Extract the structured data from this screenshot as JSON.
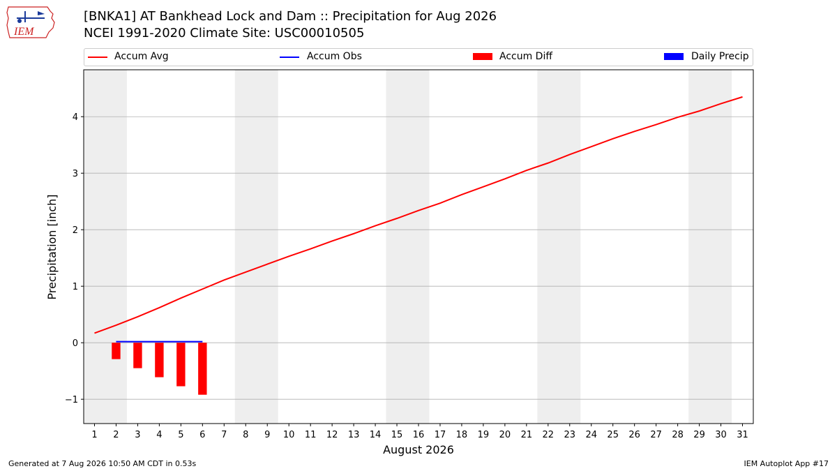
{
  "header": {
    "title_line1": "[BNKA1] AT Bankhead Lock and Dam :: Precipitation for Aug 2026",
    "title_line2": "NCEI 1991-2020 Climate Site: USC00010505",
    "logo_text": "IEM"
  },
  "footer": {
    "generated": "Generated at 7 Aug 2026 10:50 AM CDT in 0.53s",
    "app": "IEM Autoplot App #17"
  },
  "colors": {
    "accum_avg": "#ff0000",
    "accum_obs": "#0000ff",
    "accum_diff": "#ff0000",
    "daily_precip": "#0000ff",
    "weekend_shade": "#eeeeee",
    "grid": "#b0b0b0"
  },
  "chart_data": {
    "type": "line",
    "xlabel": "August 2026",
    "ylabel": "Precipitation [inch]",
    "xlim": [
      0.5,
      31.5
    ],
    "ylim": [
      -1.43,
      4.83
    ],
    "x_ticks": [
      1,
      2,
      3,
      4,
      5,
      6,
      7,
      8,
      9,
      10,
      11,
      12,
      13,
      14,
      15,
      16,
      17,
      18,
      19,
      20,
      21,
      22,
      23,
      24,
      25,
      26,
      27,
      28,
      29,
      30,
      31
    ],
    "y_ticks": [
      -1,
      0,
      1,
      2,
      3,
      4
    ],
    "y_tick_labels": [
      "−1",
      "0",
      "1",
      "2",
      "3",
      "4"
    ],
    "grid": "horizontal",
    "legend_position": "top",
    "legend": [
      "Accum Avg",
      "Accum Obs",
      "Accum Diff",
      "Daily Precip"
    ],
    "shaded_day_ranges": [
      [
        0.5,
        2.5
      ],
      [
        7.5,
        9.5
      ],
      [
        14.5,
        16.5
      ],
      [
        21.5,
        23.5
      ],
      [
        28.5,
        30.5
      ]
    ],
    "series": [
      {
        "name": "Accum Avg",
        "type": "line",
        "x": [
          1,
          2,
          3,
          4,
          5,
          6,
          7,
          8,
          9,
          10,
          11,
          12,
          13,
          14,
          15,
          16,
          17,
          18,
          19,
          20,
          21,
          22,
          23,
          24,
          25,
          26,
          27,
          28,
          29,
          30,
          31
        ],
        "values": [
          0.17,
          0.31,
          0.46,
          0.62,
          0.79,
          0.95,
          1.11,
          1.25,
          1.39,
          1.53,
          1.66,
          1.8,
          1.93,
          2.07,
          2.2,
          2.34,
          2.47,
          2.62,
          2.76,
          2.9,
          3.05,
          3.18,
          3.33,
          3.47,
          3.61,
          3.74,
          3.86,
          3.99,
          4.1,
          4.23,
          4.35
        ]
      },
      {
        "name": "Accum Obs",
        "type": "line",
        "x": [
          2,
          3,
          4,
          5,
          6
        ],
        "values": [
          0.02,
          0.02,
          0.02,
          0.02,
          0.02
        ]
      },
      {
        "name": "Accum Diff",
        "type": "bar",
        "x": [
          2,
          3,
          4,
          5,
          6
        ],
        "values": [
          -0.29,
          -0.45,
          -0.61,
          -0.77,
          -0.92
        ]
      },
      {
        "name": "Daily Precip",
        "type": "bar",
        "x": [
          2,
          3,
          4,
          5,
          6
        ],
        "values": [
          0,
          0,
          0,
          0,
          0
        ]
      }
    ]
  }
}
